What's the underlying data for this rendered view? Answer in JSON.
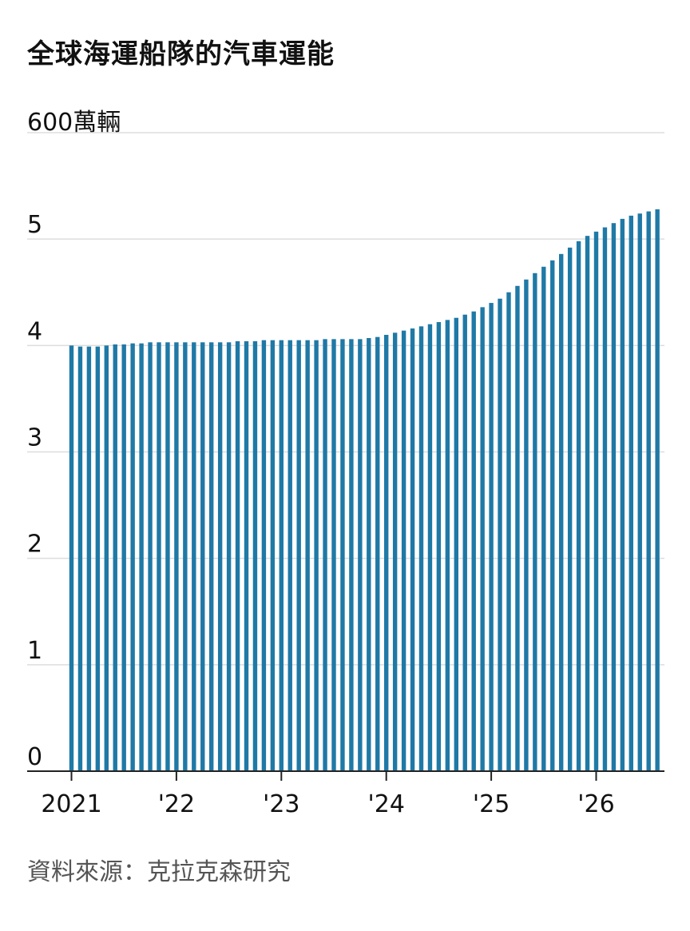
{
  "title": "全球海運船隊的汽車運能",
  "unit_label": "600萬輛",
  "source": "資料來源：克拉克森研究",
  "colors": {
    "bar": "#1f79a6",
    "grid": "#dddddd",
    "axis": "#222222"
  },
  "chart_data": {
    "type": "bar",
    "title": "全球海運船隊的汽車運能",
    "ylabel": "萬輛",
    "ylim": [
      0,
      600
    ],
    "y_ticks": [
      {
        "value": 0,
        "label": "0"
      },
      {
        "value": 100,
        "label": "1"
      },
      {
        "value": 200,
        "label": "2"
      },
      {
        "value": 300,
        "label": "3"
      },
      {
        "value": 400,
        "label": "4"
      },
      {
        "value": 500,
        "label": "5"
      },
      {
        "value": 600,
        "label": ""
      }
    ],
    "x_ticks": [
      {
        "index": 0,
        "label": "2021"
      },
      {
        "index": 12,
        "label": "'22"
      },
      {
        "index": 24,
        "label": "'23"
      },
      {
        "index": 36,
        "label": "'24"
      },
      {
        "index": 48,
        "label": "'25"
      },
      {
        "index": 60,
        "label": "'26"
      }
    ],
    "values": [
      400,
      399,
      399,
      399,
      400,
      401,
      401,
      402,
      402,
      403,
      403,
      403,
      403,
      403,
      403,
      403,
      403,
      403,
      403,
      404,
      404,
      404,
      405,
      405,
      405,
      405,
      405,
      405,
      405,
      406,
      406,
      406,
      406,
      406,
      407,
      408,
      410,
      412,
      414,
      416,
      418,
      420,
      422,
      424,
      426,
      429,
      432,
      436,
      440,
      444,
      450,
      456,
      462,
      468,
      474,
      480,
      486,
      492,
      498,
      503,
      507,
      511,
      515,
      519,
      522,
      524,
      526,
      528
    ],
    "grid": true,
    "legend": "none"
  }
}
